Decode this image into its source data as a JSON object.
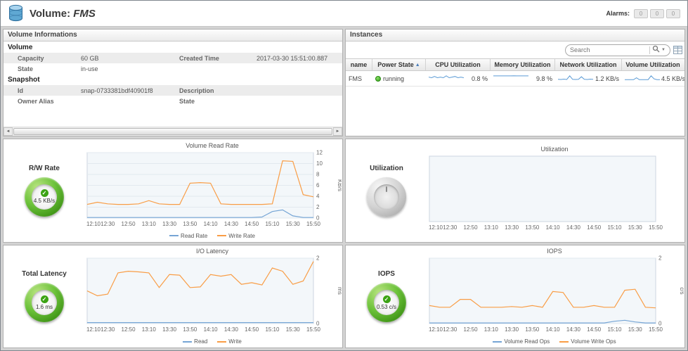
{
  "header": {
    "title_prefix": "Volume:",
    "title_name": "FMS",
    "alarms_label": "Alarms:",
    "alarm_counts": [
      "0",
      "0",
      "0"
    ]
  },
  "colors": {
    "read_series_blue": "#76a5d5",
    "write_series_orange": "#f99d45",
    "gauge_green": "#4ca81f",
    "running_dot_green": "#3fae2a",
    "sparkline_blue": "#5b9bd5"
  },
  "volume_info": {
    "panel_title": "Volume Informations",
    "sections": [
      {
        "title": "Volume",
        "rows": [
          {
            "label": "Capacity",
            "value": "60 GB",
            "label2": "Created Time",
            "value2": "2017-03-30 15:51:00.887"
          },
          {
            "label": "State",
            "value": "in-use",
            "label2": "",
            "value2": ""
          }
        ]
      },
      {
        "title": "Snapshot",
        "rows": [
          {
            "label": "Id",
            "value": "snap-0733381bdf40901f8",
            "label2": "Description",
            "value2": ""
          },
          {
            "label": "Owner Alias",
            "value": "",
            "label2": "State",
            "value2": ""
          }
        ]
      }
    ],
    "scroll_left_arrow": "◄",
    "scroll_right_arrow": "►"
  },
  "instances": {
    "panel_title": "Instances",
    "search_placeholder": "Search",
    "sort_arrow": "▲",
    "columns": {
      "name": "name",
      "power": "Power State",
      "cpu": "CPU Utilization",
      "memory": "Memory Utilization",
      "network": "Network Utilization",
      "volume": "Volume Utilization"
    },
    "rows": [
      {
        "name": "FMS",
        "power_state": "running",
        "cpu_value": "0.8 %",
        "cpu_spark": [
          0.6,
          0.5,
          0.7,
          0.5,
          0.6,
          0.5,
          0.8,
          0.5,
          0.6,
          0.7,
          0.5,
          0.6,
          0.5
        ],
        "memory_value": "9.8 %",
        "memory_spark": [
          9.8,
          9.8,
          9.8,
          9.7,
          9.8,
          9.8,
          9.8,
          9.9,
          9.8,
          9.8,
          9.7,
          9.8,
          9.8
        ],
        "network_value": "1.2 KB/s",
        "network_spark": [
          1.0,
          0.9,
          1.1,
          0.9,
          3.2,
          1.0,
          0.9,
          1.0,
          2.6,
          1.0,
          0.9,
          1.1,
          1.0
        ],
        "volume_value": "4.5 KB/s",
        "volume_spark": [
          2.5,
          2.5,
          2.6,
          2.5,
          6.4,
          2.5,
          2.5,
          2.5,
          2.6,
          10.5,
          4.2,
          2.6,
          2.5
        ]
      }
    ]
  },
  "gauges": [
    {
      "label": "R/W Rate",
      "value": "4.5 KB/s",
      "style": "green"
    },
    {
      "label": "Utilization",
      "value": "",
      "style": "gray"
    },
    {
      "label": "Total Latency",
      "value": "1.6 ms",
      "style": "green"
    },
    {
      "label": "IOPS",
      "value": "0.53 c/s",
      "style": "green"
    }
  ],
  "chart_data": [
    {
      "type": "line",
      "title": "Volume Read Rate",
      "ylabel": "KB/s",
      "ylim": [
        0,
        12
      ],
      "yticks": [
        0,
        2,
        4,
        6,
        8,
        10,
        12
      ],
      "x_tick_labels": [
        "12:10",
        "12:30",
        "12:50",
        "13:10",
        "13:30",
        "13:50",
        "14:10",
        "14:30",
        "14:50",
        "15:10",
        "15:30",
        "15:50"
      ],
      "points": 23,
      "legend_position": "bottom",
      "series": [
        {
          "name": "Read Rate",
          "color": "#76a5d5",
          "values": [
            0.1,
            0.1,
            0.1,
            0.1,
            0.1,
            0.1,
            0.1,
            0.1,
            0.1,
            0.1,
            0.1,
            0.1,
            0.1,
            0.1,
            0.1,
            0.1,
            0.1,
            0.2,
            1.2,
            1.5,
            0.4,
            0.1,
            0.1
          ]
        },
        {
          "name": "Write Rate",
          "color": "#f99d45",
          "values": [
            2.5,
            2.9,
            2.6,
            2.5,
            2.5,
            2.6,
            3.2,
            2.6,
            2.5,
            2.5,
            6.4,
            6.5,
            6.4,
            2.6,
            2.5,
            2.5,
            2.5,
            2.5,
            2.6,
            10.5,
            10.4,
            4.3,
            3.9
          ]
        }
      ]
    },
    {
      "type": "line",
      "title": "Utilization",
      "ylabel": "",
      "ylim": [
        0,
        1
      ],
      "yticks": [],
      "x_tick_labels": [
        "12:10",
        "12:30",
        "12:50",
        "13:10",
        "13:30",
        "13:50",
        "14:10",
        "14:30",
        "14:50",
        "15:10",
        "15:30",
        "15:50"
      ],
      "points": 23,
      "series": []
    },
    {
      "type": "line",
      "title": "I/O Latency",
      "ylabel": "ms",
      "ylim": [
        0,
        2
      ],
      "yticks": [
        0,
        2
      ],
      "x_tick_labels": [
        "12:10",
        "12:30",
        "12:50",
        "13:10",
        "13:30",
        "13:50",
        "14:10",
        "14:30",
        "14:50",
        "15:10",
        "15:30",
        "15:50"
      ],
      "points": 23,
      "legend_position": "bottom",
      "series": [
        {
          "name": "Read",
          "color": "#76a5d5",
          "values": [
            0.03,
            0.03,
            0.03,
            0.03,
            0.03,
            0.03,
            0.03,
            0.03,
            0.03,
            0.03,
            0.03,
            0.03,
            0.03,
            0.03,
            0.03,
            0.03,
            0.03,
            0.03,
            0.03,
            0.03,
            0.03,
            0.03,
            0.03
          ]
        },
        {
          "name": "Write",
          "color": "#f99d45",
          "values": [
            1.0,
            0.85,
            0.9,
            1.55,
            1.6,
            1.58,
            1.55,
            1.1,
            1.5,
            1.48,
            1.1,
            1.12,
            1.5,
            1.45,
            1.5,
            1.2,
            1.25,
            1.18,
            1.7,
            1.6,
            1.2,
            1.3,
            1.9
          ]
        }
      ]
    },
    {
      "type": "line",
      "title": "IOPS",
      "ylabel": "c/s",
      "ylim": [
        0,
        2
      ],
      "yticks": [
        0,
        2
      ],
      "x_tick_labels": [
        "12:10",
        "12:30",
        "12:50",
        "13:10",
        "13:30",
        "13:50",
        "14:10",
        "14:30",
        "14:50",
        "15:10",
        "15:30",
        "15:50"
      ],
      "points": 23,
      "legend_position": "bottom",
      "series": [
        {
          "name": "Volume Read Ops",
          "color": "#76a5d5",
          "values": [
            0.02,
            0.02,
            0.02,
            0.02,
            0.02,
            0.02,
            0.02,
            0.02,
            0.02,
            0.02,
            0.02,
            0.02,
            0.02,
            0.02,
            0.02,
            0.02,
            0.02,
            0.02,
            0.07,
            0.1,
            0.05,
            0.02,
            0.02
          ]
        },
        {
          "name": "Volume Write Ops",
          "color": "#f99d45",
          "values": [
            0.55,
            0.5,
            0.5,
            0.74,
            0.74,
            0.5,
            0.5,
            0.5,
            0.52,
            0.5,
            0.55,
            0.5,
            0.98,
            0.95,
            0.5,
            0.5,
            0.55,
            0.5,
            0.5,
            1.02,
            1.05,
            0.5,
            0.48
          ]
        }
      ]
    }
  ]
}
